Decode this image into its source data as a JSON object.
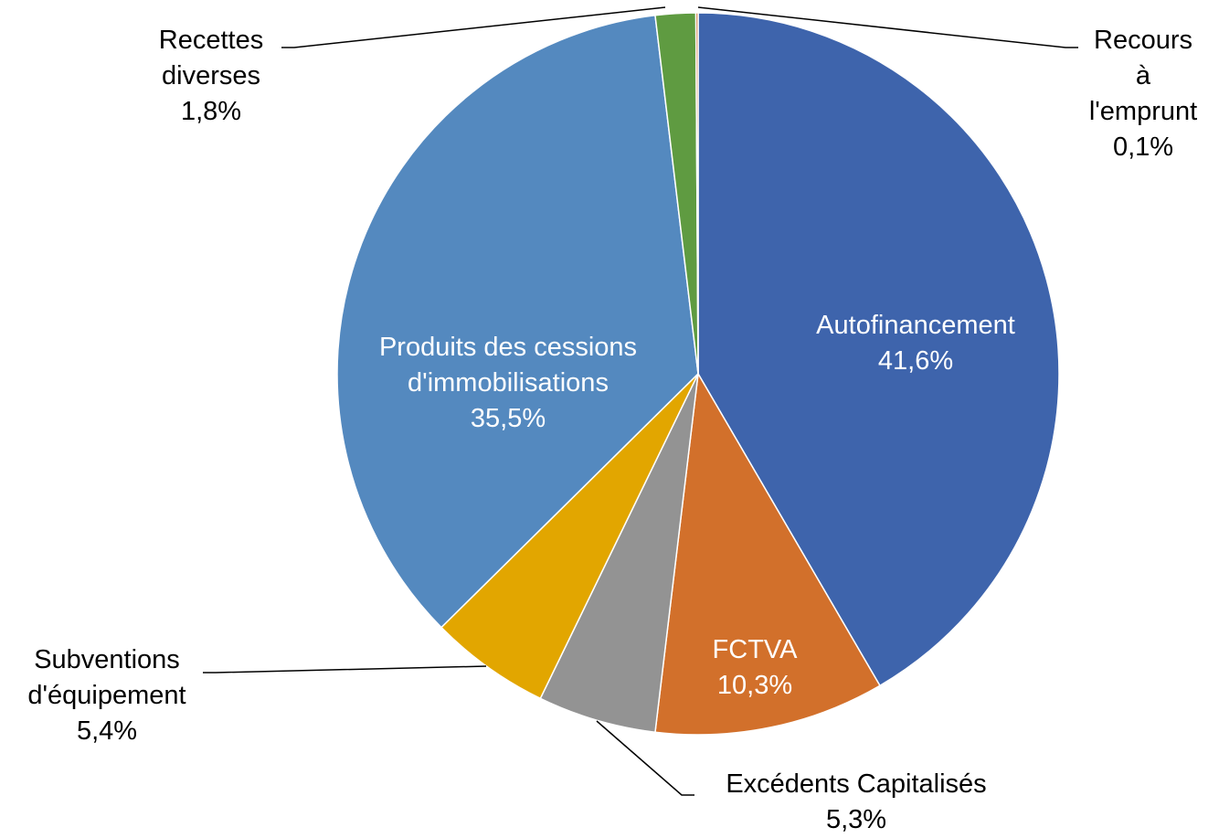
{
  "chart_data": {
    "type": "pie",
    "categories": [
      "Autofinancement",
      "FCTVA",
      "Excédents Capitalisés",
      "Subventions d'équipement",
      "Produits des cessions d'immobilisations",
      "Recettes diverses",
      "Recours à l'emprunt"
    ],
    "values": [
      41.6,
      10.3,
      5.3,
      5.4,
      35.5,
      1.8,
      0.1
    ],
    "value_labels": [
      "41,6%",
      "10,3%",
      "5,3%",
      "5,4%",
      "35,5%",
      "1,8%",
      "0,1%"
    ],
    "colors": [
      "#3e64ac",
      "#d2702b",
      "#939393",
      "#e2a600",
      "#5489bf",
      "#5f9b41",
      "#c8702e"
    ]
  }
}
